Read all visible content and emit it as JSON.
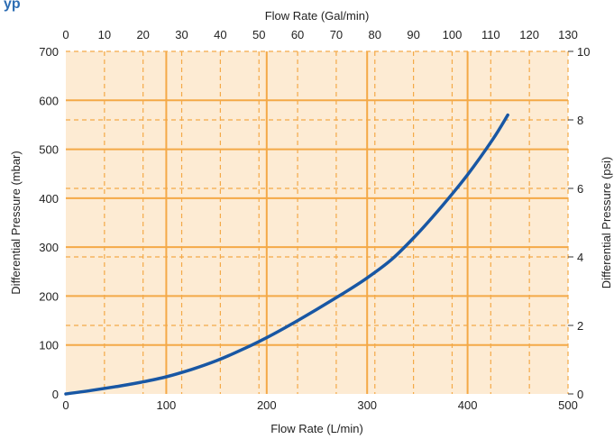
{
  "colors": {
    "background": "#fdebd3",
    "grid": "#f4a947",
    "curve": "#1857a4",
    "text": "#222222",
    "corner": "#2d6db3"
  },
  "corner_text": "yp",
  "chart_data": {
    "type": "line",
    "title": "",
    "xlabel": "Flow Rate (L/min)",
    "ylabel": "Differential Pressure (mbar)",
    "x2label": "Flow Rate (Gal/min)",
    "y2label": "Differential Pressure (psi)",
    "xlim": [
      0,
      500
    ],
    "ylim": [
      0,
      700
    ],
    "x2lim": [
      0,
      130
    ],
    "y2lim": [
      0,
      10
    ],
    "xticks": [
      0,
      100,
      200,
      300,
      400,
      500
    ],
    "yticks": [
      0,
      100,
      200,
      300,
      400,
      500,
      600,
      700
    ],
    "x2ticks": [
      0,
      10,
      20,
      30,
      40,
      50,
      60,
      70,
      80,
      90,
      100,
      110,
      120,
      130
    ],
    "y2ticks": [
      0,
      2,
      4,
      6,
      8,
      10
    ],
    "grid": true,
    "legend": "none",
    "series": [
      {
        "x": [
          0,
          25,
          50,
          75,
          100,
          125,
          150,
          175,
          200,
          225,
          250,
          275,
          300,
          325,
          350,
          375,
          400,
          425,
          440
        ],
        "values": [
          0,
          7,
          15,
          24,
          35,
          50,
          68,
          90,
          115,
          143,
          173,
          204,
          237,
          276,
          327,
          385,
          448,
          520,
          570
        ]
      }
    ]
  }
}
